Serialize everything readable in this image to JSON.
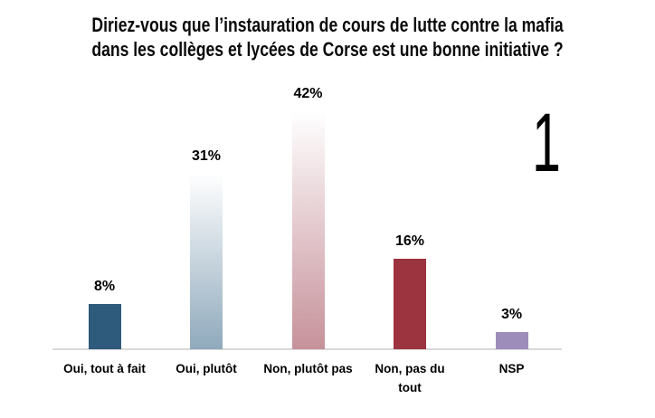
{
  "slide": {
    "title_display": "Diriez-vous que l’instauration de cours de lutte contre la mafia\ndans les collèges et lycées de Corse est une bonne initiative ?",
    "page_number": "1"
  },
  "chart_data": {
    "type": "bar",
    "title": "Diriez-vous que l’instauration de cours de lutte contre la mafia dans les collèges et lycées de Corse est une bonne initiative ?",
    "categories": [
      "Oui, tout à fait",
      "Oui, plutôt",
      "Non, plutôt pas",
      "Non, pas du tout",
      "NSP"
    ],
    "categories_display": [
      "Oui, tout à fait",
      "Oui, plutôt",
      "Non, plutôt pas",
      "Non, pas du\ntout",
      "NSP"
    ],
    "values": [
      8,
      31,
      42,
      16,
      3
    ],
    "value_labels": [
      "8%",
      "31%",
      "42%",
      "16%",
      "3%"
    ],
    "unit": "%",
    "ylim": [
      0,
      45
    ],
    "grid": false,
    "legend": false,
    "background": "#FFFFFF",
    "axis_line_color": "#D9D9D9",
    "bar_colors": [
      {
        "type": "solid",
        "color": "#2E5A7C"
      },
      {
        "type": "gradient",
        "from": "#FFFFFF",
        "to": "#8FA9BC"
      },
      {
        "type": "gradient",
        "from": "#FFFFFF",
        "to": "#C6919A"
      },
      {
        "type": "solid",
        "color": "#9B343E"
      },
      {
        "type": "solid",
        "color": "#9D8DBB"
      }
    ]
  }
}
